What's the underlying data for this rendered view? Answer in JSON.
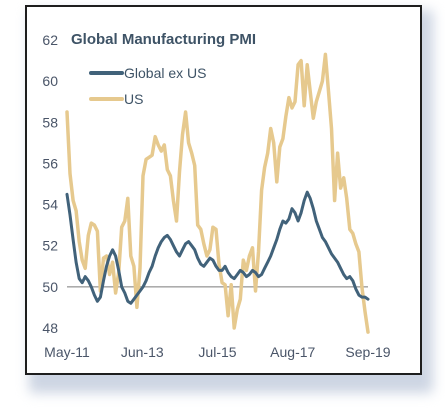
{
  "chart_data": {
    "type": "line",
    "title": "Global Manufacturing PMI",
    "xlabel": "",
    "ylabel": "",
    "x_tick_labels": [
      "May-11",
      "Jun-13",
      "Jul-15",
      "Aug-17",
      "Sep-19"
    ],
    "y_ticks": [
      48,
      50,
      52,
      54,
      56,
      58,
      60,
      62
    ],
    "ylim": [
      48,
      62
    ],
    "reference_line": 50,
    "grid": false,
    "legend_position": "top-left",
    "x_start": "May-11",
    "x_end": "Sep-19",
    "series": [
      {
        "name": "Global ex US",
        "color": "#41627a",
        "values": [
          54.5,
          53.5,
          52.3,
          51.2,
          50.4,
          50.2,
          50.5,
          50.3,
          50.0,
          49.6,
          49.3,
          49.5,
          50.3,
          51.0,
          51.5,
          51.8,
          51.5,
          50.8,
          50.0,
          49.7,
          49.3,
          49.2,
          49.4,
          49.6,
          49.8,
          50.0,
          50.3,
          50.7,
          51.0,
          51.5,
          51.9,
          52.2,
          52.4,
          52.5,
          52.3,
          52.0,
          51.7,
          51.5,
          51.8,
          52.1,
          52.2,
          52.0,
          51.8,
          51.4,
          51.1,
          51.0,
          51.2,
          51.4,
          51.3,
          51.0,
          50.8,
          50.8,
          51.0,
          50.7,
          50.5,
          50.4,
          50.6,
          50.8,
          50.7,
          50.5,
          50.6,
          50.8,
          50.7,
          50.5,
          50.6,
          50.9,
          51.2,
          51.5,
          51.9,
          52.3,
          52.8,
          53.2,
          53.1,
          53.3,
          53.8,
          53.6,
          53.2,
          53.6,
          54.2,
          54.6,
          54.3,
          53.8,
          53.2,
          52.8,
          52.4,
          52.2,
          51.9,
          51.6,
          51.4,
          51.2,
          50.9,
          50.6,
          50.4,
          50.5,
          50.3,
          49.9,
          49.6,
          49.5,
          49.5,
          49.4
        ]
      },
      {
        "name": "US",
        "color": "#e6c98e",
        "values": [
          58.5,
          55.5,
          54.2,
          53.7,
          52.2,
          51.3,
          50.9,
          52.5,
          53.1,
          53.0,
          52.7,
          49.8,
          51.4,
          51.5,
          50.6,
          51.2,
          49.7,
          50.7,
          52.9,
          53.2,
          54.3,
          51.5,
          51.0,
          49.0,
          50.9,
          55.4,
          56.2,
          56.3,
          56.4,
          57.3,
          56.9,
          56.6,
          56.9,
          55.7,
          55.4,
          54.2,
          53.2,
          55.6,
          57.4,
          58.5,
          57.0,
          56.5,
          55.9,
          53.0,
          52.8,
          52.1,
          51.5,
          51.8,
          52.9,
          52.8,
          51.1,
          50.2,
          50.1,
          48.6,
          50.1,
          48.0,
          48.9,
          49.4,
          51.3,
          50.8,
          51.5,
          51.9,
          49.8,
          51.7,
          54.7,
          55.8,
          56.5,
          57.7,
          57.0,
          55.1,
          56.8,
          57.2,
          58.3,
          59.2,
          58.7,
          59.0,
          60.8,
          61.0,
          58.8,
          60.8,
          59.5,
          58.2,
          59.0,
          59.5,
          60.0,
          61.3,
          59.5,
          57.7,
          54.2,
          56.5,
          54.8,
          55.3,
          54.3,
          52.8,
          52.6,
          52.1,
          51.7,
          50.0,
          48.8,
          47.8
        ]
      }
    ]
  }
}
